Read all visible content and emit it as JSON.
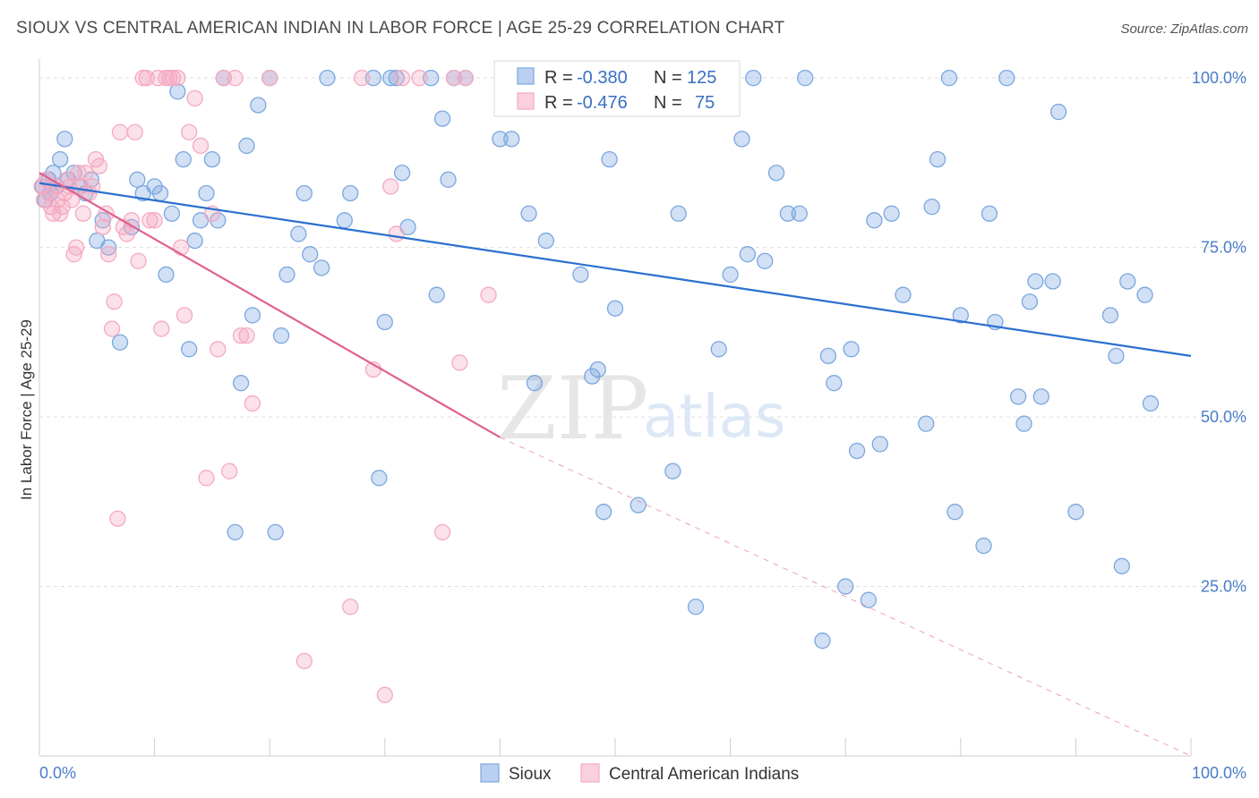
{
  "title": "SIOUX VS CENTRAL AMERICAN INDIAN IN LABOR FORCE | AGE 25-29 CORRELATION CHART",
  "source": "Source: ZipAtlas.com",
  "watermark": {
    "zip": "ZIP",
    "atlas": "atlas"
  },
  "chart_data": {
    "type": "scatter",
    "title": "SIOUX VS CENTRAL AMERICAN INDIAN IN LABOR FORCE | AGE 25-29 CORRELATION CHART",
    "xlabel": "",
    "ylabel": "In Labor Force | Age 25-29",
    "xlim": [
      0,
      100
    ],
    "ylim": [
      0,
      102
    ],
    "x_tick_labels": {
      "left": "0.0%",
      "right": "100.0%"
    },
    "y_ticks": [
      {
        "value": 25,
        "label": "25.0%"
      },
      {
        "value": 50,
        "label": "50.0%"
      },
      {
        "value": 75,
        "label": "75.0%"
      },
      {
        "value": 100,
        "label": "100.0%"
      }
    ],
    "grid": true,
    "legend": {
      "placement": "top-center",
      "entries": [
        {
          "r_label": "R =",
          "r": "-0.380",
          "n_label": "N =",
          "n": "125"
        },
        {
          "r_label": "R =",
          "r": "-0.476",
          "n_label": "N =",
          "n": "75"
        }
      ]
    },
    "series": [
      {
        "name": "Sioux",
        "color": "#7ba7e0",
        "line_color": "#2a6fcf",
        "trend": {
          "x0": 0,
          "y0": 84.5,
          "x1": 100,
          "y1": 59.0
        },
        "points": [
          [
            0.3,
            84
          ],
          [
            0.5,
            82
          ],
          [
            0.8,
            85
          ],
          [
            1,
            83
          ],
          [
            1.2,
            86
          ],
          [
            1.5,
            84
          ],
          [
            1.8,
            88
          ],
          [
            2.2,
            91
          ],
          [
            2.5,
            85
          ],
          [
            3,
            86
          ],
          [
            3.5,
            84
          ],
          [
            4,
            83
          ],
          [
            4.5,
            85
          ],
          [
            5,
            76
          ],
          [
            5.5,
            79
          ],
          [
            6,
            75
          ],
          [
            7,
            61
          ],
          [
            8,
            78
          ],
          [
            8.5,
            85
          ],
          [
            9,
            83
          ],
          [
            10,
            84
          ],
          [
            10.5,
            83
          ],
          [
            11,
            71
          ],
          [
            11.5,
            80
          ],
          [
            12,
            98
          ],
          [
            12.5,
            88
          ],
          [
            13,
            60
          ],
          [
            13.5,
            76
          ],
          [
            14,
            79
          ],
          [
            14.5,
            83
          ],
          [
            15,
            88
          ],
          [
            15.5,
            79
          ],
          [
            16,
            100
          ],
          [
            17,
            33
          ],
          [
            17.5,
            55
          ],
          [
            18,
            90
          ],
          [
            18.5,
            65
          ],
          [
            19,
            96
          ],
          [
            20,
            100
          ],
          [
            20.5,
            33
          ],
          [
            21,
            62
          ],
          [
            21.5,
            71
          ],
          [
            22.5,
            77
          ],
          [
            23,
            83
          ],
          [
            23.5,
            74
          ],
          [
            24.5,
            72
          ],
          [
            25,
            100
          ],
          [
            26.5,
            79
          ],
          [
            27,
            83
          ],
          [
            29,
            100
          ],
          [
            29.5,
            41
          ],
          [
            30,
            64
          ],
          [
            30.5,
            100
          ],
          [
            31,
            100
          ],
          [
            31.5,
            86
          ],
          [
            32,
            78
          ],
          [
            34,
            100
          ],
          [
            34.5,
            68
          ],
          [
            35,
            94
          ],
          [
            35.5,
            85
          ],
          [
            36,
            100
          ],
          [
            37,
            100
          ],
          [
            40,
            91
          ],
          [
            41,
            91
          ],
          [
            42,
            100
          ],
          [
            42.5,
            80
          ],
          [
            43,
            55
          ],
          [
            44,
            76
          ],
          [
            45,
            100
          ],
          [
            47,
            71
          ],
          [
            48,
            56
          ],
          [
            48.5,
            57
          ],
          [
            49,
            36
          ],
          [
            49.5,
            88
          ],
          [
            50,
            66
          ],
          [
            52,
            37
          ],
          [
            54,
            100
          ],
          [
            55,
            42
          ],
          [
            55.5,
            80
          ],
          [
            57,
            22
          ],
          [
            59,
            60
          ],
          [
            60,
            71
          ],
          [
            61,
            91
          ],
          [
            61.5,
            74
          ],
          [
            62,
            100
          ],
          [
            63,
            73
          ],
          [
            64,
            86
          ],
          [
            65,
            80
          ],
          [
            66,
            80
          ],
          [
            66.5,
            100
          ],
          [
            68,
            17
          ],
          [
            68.5,
            59
          ],
          [
            69,
            55
          ],
          [
            70,
            25
          ],
          [
            70.5,
            60
          ],
          [
            71,
            45
          ],
          [
            72,
            23
          ],
          [
            72.5,
            79
          ],
          [
            73,
            46
          ],
          [
            74,
            80
          ],
          [
            75,
            68
          ],
          [
            77,
            49
          ],
          [
            77.5,
            81
          ],
          [
            78,
            88
          ],
          [
            79,
            100
          ],
          [
            79.5,
            36
          ],
          [
            80,
            65
          ],
          [
            82,
            31
          ],
          [
            82.5,
            80
          ],
          [
            83,
            64
          ],
          [
            84,
            100
          ],
          [
            85,
            53
          ],
          [
            85.5,
            49
          ],
          [
            86,
            67
          ],
          [
            86.5,
            70
          ],
          [
            87,
            53
          ],
          [
            88,
            70
          ],
          [
            88.5,
            95
          ],
          [
            90,
            36
          ],
          [
            93,
            65
          ],
          [
            93.5,
            59
          ],
          [
            94,
            28
          ],
          [
            94.5,
            70
          ],
          [
            96,
            68
          ],
          [
            96.5,
            52
          ]
        ]
      },
      {
        "name": "Central American Indians",
        "color": "#f4a9c1",
        "line_color": "#e0608e",
        "trend": {
          "x0": 0,
          "y0": 86.0,
          "x1": 40,
          "y1": 47.0
        },
        "trend_dashed": {
          "x0": 40,
          "y0": 47.0,
          "x1": 100,
          "y1": 0
        },
        "points": [
          [
            0.2,
            84
          ],
          [
            0.4,
            82
          ],
          [
            0.6,
            85
          ],
          [
            0.8,
            83
          ],
          [
            1,
            81
          ],
          [
            1.2,
            80
          ],
          [
            1.4,
            84
          ],
          [
            1.6,
            82
          ],
          [
            1.8,
            80
          ],
          [
            2,
            81
          ],
          [
            2.2,
            83
          ],
          [
            2.4,
            85
          ],
          [
            2.6,
            84
          ],
          [
            2.8,
            82
          ],
          [
            3,
            74
          ],
          [
            3.2,
            75
          ],
          [
            3.4,
            86
          ],
          [
            3.6,
            84
          ],
          [
            3.8,
            80
          ],
          [
            4,
            86
          ],
          [
            4.3,
            83
          ],
          [
            4.6,
            84
          ],
          [
            4.9,
            88
          ],
          [
            5.2,
            87
          ],
          [
            5.5,
            78
          ],
          [
            5.8,
            80
          ],
          [
            6,
            74
          ],
          [
            6.3,
            63
          ],
          [
            6.5,
            67
          ],
          [
            6.8,
            35
          ],
          [
            7,
            92
          ],
          [
            7.3,
            78
          ],
          [
            7.6,
            77
          ],
          [
            8,
            79
          ],
          [
            8.3,
            92
          ],
          [
            8.6,
            73
          ],
          [
            9,
            100
          ],
          [
            9.3,
            100
          ],
          [
            9.6,
            79
          ],
          [
            10,
            79
          ],
          [
            10.3,
            100
          ],
          [
            10.6,
            63
          ],
          [
            11,
            100
          ],
          [
            11.3,
            100
          ],
          [
            11.6,
            100
          ],
          [
            12,
            100
          ],
          [
            12.3,
            75
          ],
          [
            12.6,
            65
          ],
          [
            13,
            92
          ],
          [
            13.5,
            97
          ],
          [
            14,
            90
          ],
          [
            14.5,
            41
          ],
          [
            15,
            80
          ],
          [
            15.5,
            60
          ],
          [
            16,
            100
          ],
          [
            16.5,
            42
          ],
          [
            17,
            100
          ],
          [
            17.5,
            62
          ],
          [
            18,
            62
          ],
          [
            18.5,
            52
          ],
          [
            20,
            100
          ],
          [
            23,
            14
          ],
          [
            27,
            22
          ],
          [
            28,
            100
          ],
          [
            29,
            57
          ],
          [
            30,
            9
          ],
          [
            30.5,
            84
          ],
          [
            31,
            77
          ],
          [
            31.5,
            100
          ],
          [
            33,
            100
          ],
          [
            35,
            33
          ],
          [
            36,
            100
          ],
          [
            36.5,
            58
          ],
          [
            37,
            100
          ],
          [
            39,
            68
          ]
        ]
      }
    ]
  },
  "bottom_legend": [
    {
      "label": "Sioux",
      "color": "#b9d0f0",
      "stroke": "#7ba7e0"
    },
    {
      "label": "Central American Indians",
      "color": "#fad0dc",
      "stroke": "#f4a9c1"
    }
  ]
}
